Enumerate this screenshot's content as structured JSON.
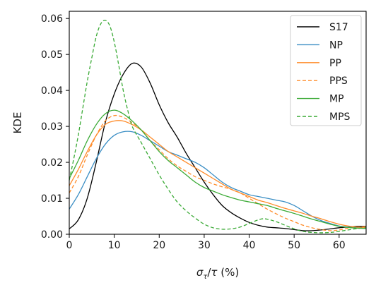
{
  "chart_data": {
    "type": "line",
    "xlabel": "σ_τ/τ (%)",
    "ylabel": "KDE",
    "xlim": [
      0,
      66
    ],
    "ylim": [
      0,
      0.062
    ],
    "xticks": [
      0,
      10,
      20,
      30,
      40,
      50,
      60
    ],
    "yticks": [
      0.0,
      0.01,
      0.02,
      0.03,
      0.04,
      0.05,
      0.06
    ],
    "grid": false,
    "legend_position": "top-right",
    "series": [
      {
        "name": "S17",
        "color": "#000000",
        "dash": "solid",
        "points": [
          [
            0,
            0.0015
          ],
          [
            2,
            0.004
          ],
          [
            4,
            0.01
          ],
          [
            6,
            0.02
          ],
          [
            8,
            0.031
          ],
          [
            10,
            0.039
          ],
          [
            12,
            0.0445
          ],
          [
            14,
            0.0475
          ],
          [
            16,
            0.0465
          ],
          [
            18,
            0.042
          ],
          [
            20,
            0.036
          ],
          [
            22,
            0.031
          ],
          [
            24,
            0.027
          ],
          [
            26,
            0.0225
          ],
          [
            28,
            0.0185
          ],
          [
            30,
            0.0145
          ],
          [
            32,
            0.011
          ],
          [
            34,
            0.008
          ],
          [
            36,
            0.006
          ],
          [
            38,
            0.0045
          ],
          [
            40,
            0.0033
          ],
          [
            42,
            0.0025
          ],
          [
            44,
            0.002
          ],
          [
            46,
            0.0018
          ],
          [
            48,
            0.0016
          ],
          [
            50,
            0.0013
          ],
          [
            52,
            0.001
          ],
          [
            54,
            0.001
          ],
          [
            56,
            0.0012
          ],
          [
            58,
            0.0015
          ],
          [
            60,
            0.0018
          ],
          [
            62,
            0.002
          ],
          [
            64,
            0.0022
          ],
          [
            66,
            0.0022
          ]
        ]
      },
      {
        "name": "NP",
        "color": "#3a8ec4",
        "dash": "solid",
        "points": [
          [
            0,
            0.007
          ],
          [
            2,
            0.011
          ],
          [
            4,
            0.016
          ],
          [
            6,
            0.021
          ],
          [
            8,
            0.025
          ],
          [
            10,
            0.0275
          ],
          [
            12,
            0.0285
          ],
          [
            14,
            0.0285
          ],
          [
            16,
            0.0275
          ],
          [
            18,
            0.026
          ],
          [
            20,
            0.0245
          ],
          [
            22,
            0.023
          ],
          [
            24,
            0.022
          ],
          [
            26,
            0.021
          ],
          [
            28,
            0.02
          ],
          [
            30,
            0.0185
          ],
          [
            32,
            0.0165
          ],
          [
            34,
            0.0145
          ],
          [
            36,
            0.013
          ],
          [
            38,
            0.012
          ],
          [
            40,
            0.011
          ],
          [
            42,
            0.0105
          ],
          [
            44,
            0.01
          ],
          [
            46,
            0.0095
          ],
          [
            48,
            0.009
          ],
          [
            50,
            0.008
          ],
          [
            52,
            0.0065
          ],
          [
            54,
            0.005
          ],
          [
            56,
            0.0038
          ],
          [
            58,
            0.003
          ],
          [
            60,
            0.0023
          ],
          [
            62,
            0.002
          ],
          [
            64,
            0.0018
          ],
          [
            66,
            0.0017
          ]
        ]
      },
      {
        "name": "PP",
        "color": "#ff8c2a",
        "dash": "solid",
        "points": [
          [
            0,
            0.0135
          ],
          [
            2,
            0.018
          ],
          [
            4,
            0.023
          ],
          [
            6,
            0.0275
          ],
          [
            8,
            0.0305
          ],
          [
            10,
            0.0315
          ],
          [
            12,
            0.0315
          ],
          [
            14,
            0.0305
          ],
          [
            16,
            0.029
          ],
          [
            18,
            0.027
          ],
          [
            20,
            0.025
          ],
          [
            22,
            0.023
          ],
          [
            24,
            0.0215
          ],
          [
            26,
            0.02
          ],
          [
            28,
            0.0185
          ],
          [
            30,
            0.017
          ],
          [
            32,
            0.0155
          ],
          [
            34,
            0.014
          ],
          [
            36,
            0.0125
          ],
          [
            38,
            0.0115
          ],
          [
            40,
            0.0105
          ],
          [
            42,
            0.0095
          ],
          [
            44,
            0.0088
          ],
          [
            46,
            0.008
          ],
          [
            48,
            0.0072
          ],
          [
            50,
            0.0065
          ],
          [
            52,
            0.0058
          ],
          [
            54,
            0.005
          ],
          [
            56,
            0.0043
          ],
          [
            58,
            0.0035
          ],
          [
            60,
            0.0028
          ],
          [
            62,
            0.0023
          ],
          [
            64,
            0.002
          ],
          [
            66,
            0.0018
          ]
        ]
      },
      {
        "name": "PPS",
        "color": "#ff8c2a",
        "dash": "dashed",
        "points": [
          [
            0,
            0.0115
          ],
          [
            2,
            0.016
          ],
          [
            4,
            0.022
          ],
          [
            6,
            0.0275
          ],
          [
            8,
            0.0315
          ],
          [
            10,
            0.033
          ],
          [
            12,
            0.0325
          ],
          [
            14,
            0.031
          ],
          [
            16,
            0.029
          ],
          [
            18,
            0.026
          ],
          [
            20,
            0.0235
          ],
          [
            22,
            0.021
          ],
          [
            24,
            0.019
          ],
          [
            26,
            0.0175
          ],
          [
            28,
            0.016
          ],
          [
            30,
            0.015
          ],
          [
            32,
            0.014
          ],
          [
            34,
            0.0132
          ],
          [
            36,
            0.0125
          ],
          [
            38,
            0.0115
          ],
          [
            40,
            0.01
          ],
          [
            42,
            0.0085
          ],
          [
            44,
            0.007
          ],
          [
            46,
            0.0057
          ],
          [
            48,
            0.0045
          ],
          [
            50,
            0.0035
          ],
          [
            52,
            0.0025
          ],
          [
            54,
            0.0018
          ],
          [
            56,
            0.0013
          ],
          [
            58,
            0.001
          ],
          [
            60,
            0.0012
          ],
          [
            62,
            0.0017
          ],
          [
            64,
            0.002
          ],
          [
            66,
            0.0021
          ]
        ]
      },
      {
        "name": "MP",
        "color": "#3aaa35",
        "dash": "solid",
        "points": [
          [
            0,
            0.0155
          ],
          [
            2,
            0.0205
          ],
          [
            4,
            0.026
          ],
          [
            6,
            0.0305
          ],
          [
            8,
            0.0335
          ],
          [
            10,
            0.0345
          ],
          [
            12,
            0.0335
          ],
          [
            14,
            0.0315
          ],
          [
            16,
            0.029
          ],
          [
            18,
            0.026
          ],
          [
            20,
            0.023
          ],
          [
            22,
            0.0205
          ],
          [
            24,
            0.0185
          ],
          [
            26,
            0.0165
          ],
          [
            28,
            0.0145
          ],
          [
            30,
            0.013
          ],
          [
            32,
            0.012
          ],
          [
            34,
            0.011
          ],
          [
            36,
            0.0102
          ],
          [
            38,
            0.0095
          ],
          [
            40,
            0.009
          ],
          [
            42,
            0.0085
          ],
          [
            44,
            0.008
          ],
          [
            46,
            0.0072
          ],
          [
            48,
            0.0065
          ],
          [
            50,
            0.0058
          ],
          [
            52,
            0.005
          ],
          [
            54,
            0.0042
          ],
          [
            56,
            0.0035
          ],
          [
            58,
            0.0028
          ],
          [
            60,
            0.0022
          ],
          [
            62,
            0.0019
          ],
          [
            64,
            0.0017
          ],
          [
            66,
            0.0016
          ]
        ]
      },
      {
        "name": "MPS",
        "color": "#3aaa35",
        "dash": "dashed",
        "points": [
          [
            0,
            0.015
          ],
          [
            1,
            0.021
          ],
          [
            2,
            0.0275
          ],
          [
            3,
            0.035
          ],
          [
            4,
            0.0425
          ],
          [
            5,
            0.049
          ],
          [
            6,
            0.055
          ],
          [
            7,
            0.0585
          ],
          [
            8,
            0.0595
          ],
          [
            9,
            0.058
          ],
          [
            10,
            0.0535
          ],
          [
            11,
            0.047
          ],
          [
            12,
            0.04
          ],
          [
            13,
            0.0345
          ],
          [
            14,
            0.03
          ],
          [
            16,
            0.0255
          ],
          [
            18,
            0.021
          ],
          [
            20,
            0.0165
          ],
          [
            22,
            0.0125
          ],
          [
            24,
            0.009
          ],
          [
            26,
            0.0065
          ],
          [
            28,
            0.0045
          ],
          [
            30,
            0.0028
          ],
          [
            32,
            0.0018
          ],
          [
            34,
            0.0014
          ],
          [
            36,
            0.0015
          ],
          [
            38,
            0.002
          ],
          [
            40,
            0.003
          ],
          [
            42,
            0.004
          ],
          [
            43,
            0.0043
          ],
          [
            44,
            0.0042
          ],
          [
            46,
            0.0035
          ],
          [
            48,
            0.0025
          ],
          [
            50,
            0.0015
          ],
          [
            52,
            0.0008
          ],
          [
            54,
            0.0005
          ],
          [
            56,
            0.0004
          ],
          [
            58,
            0.0005
          ],
          [
            60,
            0.0008
          ],
          [
            62,
            0.0012
          ],
          [
            64,
            0.0016
          ],
          [
            66,
            0.0018
          ]
        ]
      }
    ]
  }
}
